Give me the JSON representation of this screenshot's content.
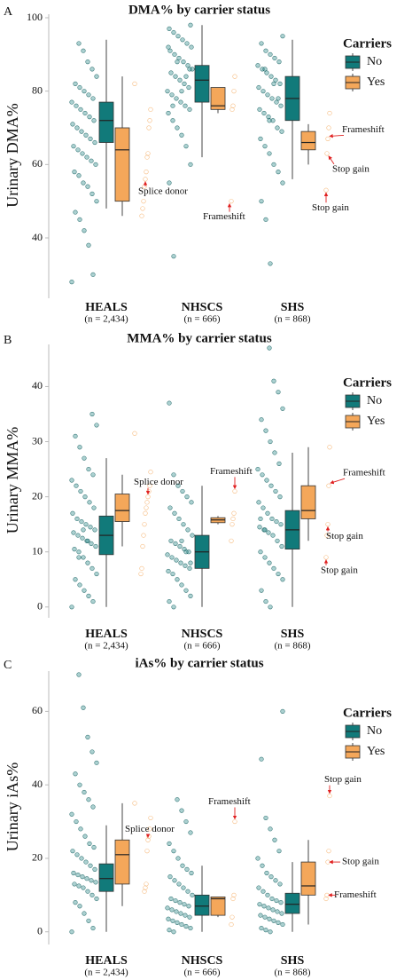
{
  "chart_data": [
    {
      "type": "box_jitter",
      "panel_label": "A",
      "title": "DMA% by carrier status",
      "ylabel": "Urinary DMA%",
      "categories": [
        "HEALS",
        "NHSCS",
        "SHS"
      ],
      "category_notes": [
        "(n = 2,434)",
        "(n = 666)",
        "(n = 868)"
      ],
      "legend_title": "Carriers",
      "ylim": [
        25,
        100
      ],
      "yticks": [
        40,
        60,
        80,
        100
      ],
      "series": [
        {
          "name": "No",
          "color": "#117a7a",
          "boxes": [
            {
              "whislo": 48,
              "q1": 66,
              "med": 72,
              "q3": 77,
              "whishi": 94
            },
            {
              "whislo": 62,
              "q1": 77,
              "med": 83,
              "q3": 87,
              "whishi": 98
            },
            {
              "whislo": 56,
              "q1": 72,
              "med": 78,
              "q3": 84,
              "whishi": 94
            }
          ],
          "points": [
            [
              28,
              30,
              38,
              42,
              45,
              47,
              50,
              52,
              54,
              55,
              57,
              58,
              60,
              61,
              62,
              63,
              64,
              65,
              66,
              67,
              68,
              69,
              70,
              71,
              72,
              73,
              74,
              75,
              76,
              77,
              78,
              79,
              80,
              81,
              82,
              84,
              86,
              88,
              91,
              93
            ],
            [
              35,
              55,
              60,
              65,
              68,
              70,
              72,
              74,
              75,
              76,
              77,
              78,
              79,
              80,
              81,
              82,
              83,
              84,
              85,
              86,
              87,
              88,
              89,
              90,
              91,
              92,
              93,
              94,
              95,
              96,
              97,
              98,
              84,
              80,
              88,
              76,
              92,
              86
            ],
            [
              33,
              45,
              50,
              55,
              58,
              60,
              63,
              65,
              67,
              69,
              70,
              72,
              73,
              74,
              75,
              76,
              77,
              78,
              79,
              80,
              81,
              82,
              83,
              84,
              85,
              86,
              87,
              88,
              89,
              90,
              91,
              93,
              95,
              78,
              82,
              72,
              86
            ]
          ]
        },
        {
          "name": "Yes",
          "color": "#f4a75a",
          "boxes": [
            {
              "whislo": 46,
              "q1": 50,
              "med": 64,
              "q3": 70,
              "whishi": 84
            },
            {
              "whislo": 74,
              "q1": 75,
              "med": 76,
              "q3": 81,
              "whishi": 81
            },
            {
              "whislo": 60,
              "q1": 64,
              "med": 66,
              "q3": 69,
              "whishi": 71
            }
          ],
          "points": [
            [
              82,
              75,
              72,
              70,
              63,
              62,
              58,
              56,
              54,
              50,
              48,
              46
            ],
            [
              84,
              80,
              76,
              75,
              50
            ],
            [
              74,
              70,
              67,
              63,
              53
            ]
          ]
        }
      ],
      "annotations": [
        {
          "label": "Splice donor",
          "category": 0,
          "value": 56
        },
        {
          "label": "Frameshift",
          "category": 1,
          "value": 50
        },
        {
          "label": "Frameshift",
          "category": 2,
          "value": 67
        },
        {
          "label": "Stop gain",
          "category": 2,
          "value": 63
        },
        {
          "label": "Stop gain",
          "category": 2,
          "value": 53
        }
      ]
    },
    {
      "type": "box_jitter",
      "panel_label": "B",
      "title": "MMA% by carrier status",
      "ylabel": "Urinary MMA%",
      "categories": [
        "HEALS",
        "NHSCS",
        "SHS"
      ],
      "category_notes": [
        "(n = 2,434)",
        "(n = 666)",
        "(n = 868)"
      ],
      "legend_title": "Carriers",
      "ylim": [
        -1,
        47
      ],
      "yticks": [
        0,
        10,
        20,
        30,
        40
      ],
      "series": [
        {
          "name": "No",
          "color": "#117a7a",
          "boxes": [
            {
              "whislo": 0,
              "q1": 9.5,
              "med": 13,
              "q3": 16.5,
              "whishi": 27
            },
            {
              "whislo": 0,
              "q1": 7,
              "med": 10,
              "q3": 13,
              "whishi": 22
            },
            {
              "whislo": 0,
              "q1": 10.5,
              "med": 14,
              "q3": 17.5,
              "whishi": 28
            }
          ],
          "points": [
            [
              0,
              1,
              2,
              3,
              4,
              5,
              6,
              7,
              8,
              9,
              10,
              10.5,
              11,
              11.5,
              12,
              12.5,
              13,
              13.5,
              14,
              14.5,
              15,
              15.5,
              16,
              17,
              18,
              19,
              20,
              21,
              22,
              23,
              24,
              25,
              27,
              29,
              31,
              33,
              35,
              12,
              14,
              9
            ],
            [
              0,
              1,
              2,
              3,
              4,
              5,
              6,
              6.5,
              7,
              7.5,
              8,
              8.5,
              9,
              9.5,
              10,
              10.5,
              11,
              11.5,
              12,
              13,
              14,
              15,
              16,
              17,
              18,
              19,
              20,
              21,
              22,
              24,
              37,
              8,
              10,
              12
            ],
            [
              0,
              1,
              3,
              5,
              6,
              7,
              8,
              9,
              10,
              11,
              12,
              13,
              13.5,
              14,
              14.5,
              15,
              15.5,
              16,
              17,
              18,
              19,
              20,
              21,
              22,
              23,
              24,
              25,
              26,
              28,
              30,
              32,
              34,
              36,
              39,
              41,
              47,
              14,
              16
            ]
          ]
        },
        {
          "name": "Yes",
          "color": "#f4a75a",
          "boxes": [
            {
              "whislo": 11,
              "q1": 15.5,
              "med": 17.5,
              "q3": 20.5,
              "whishi": 24
            },
            {
              "whislo": 15,
              "q1": 15.3,
              "med": 15.8,
              "q3": 16.2,
              "whishi": 16.5
            },
            {
              "whislo": 12,
              "q1": 16,
              "med": 17.5,
              "q3": 22,
              "whishi": 29
            }
          ],
          "points": [
            [
              31.5,
              24.5,
              22,
              21,
              20,
              19,
              18,
              17,
              15,
              13,
              11,
              7,
              6
            ],
            [
              21,
              17,
              16,
              15,
              12
            ],
            [
              29,
              22,
              15,
              13,
              9
            ]
          ]
        }
      ],
      "annotations": [
        {
          "label": "Splice donor",
          "category": 0,
          "value": 20
        },
        {
          "label": "Frameshift",
          "category": 1,
          "value": 21
        },
        {
          "label": "Frameshift",
          "category": 2,
          "value": 22
        },
        {
          "label": "Stop gain",
          "category": 2,
          "value": 15
        },
        {
          "label": "Stop gain",
          "category": 2,
          "value": 9
        }
      ]
    },
    {
      "type": "box_jitter",
      "panel_label": "C",
      "title": "iAs% by carrier status",
      "ylabel": "Urinary iAs%",
      "categories": [
        "HEALS",
        "NHSCS",
        "SHS"
      ],
      "category_notes": [
        "(n = 2,434)",
        "(n = 666)",
        "(n = 868)"
      ],
      "legend_title": "Carriers",
      "ylim": [
        -2,
        70
      ],
      "yticks": [
        0,
        20,
        40,
        60
      ],
      "series": [
        {
          "name": "No",
          "color": "#117a7a",
          "boxes": [
            {
              "whislo": 0,
              "q1": 11,
              "med": 14.5,
              "q3": 18.5,
              "whishi": 29
            },
            {
              "whislo": 0,
              "q1": 4.5,
              "med": 7,
              "q3": 10,
              "whishi": 18
            },
            {
              "whislo": 0,
              "q1": 5,
              "med": 7.5,
              "q3": 10.5,
              "whishi": 19
            }
          ],
          "points": [
            [
              0,
              1,
              3,
              5,
              7,
              8,
              9,
              10,
              11,
              12,
              12.5,
              13,
              13.5,
              14,
              14.5,
              15,
              15.5,
              16,
              17,
              18,
              19,
              20,
              21,
              22,
              23,
              24,
              26,
              28,
              30,
              32,
              34,
              36,
              38,
              40,
              43,
              46,
              49,
              53,
              61,
              70
            ],
            [
              0,
              0.5,
              1,
              1.5,
              2,
              2.5,
              3,
              3.5,
              4,
              4.5,
              5,
              5.5,
              6,
              6.5,
              7,
              7.5,
              8,
              8.5,
              9,
              10,
              11,
              12,
              13,
              14,
              15,
              16,
              17,
              18,
              20,
              22,
              24,
              27,
              30,
              33,
              36
            ],
            [
              0,
              0.5,
              1,
              2,
              2.5,
              3,
              3.5,
              4,
              4.5,
              5,
              5.5,
              6,
              6.5,
              7,
              7.5,
              8,
              8.5,
              9,
              10,
              11,
              12,
              13,
              14,
              15,
              16,
              18,
              20,
              22,
              25,
              28,
              31,
              47,
              60
            ]
          ]
        },
        {
          "name": "Yes",
          "color": "#f4a75a",
          "boxes": [
            {
              "whislo": 7,
              "q1": 13,
              "med": 21,
              "q3": 25,
              "whishi": 35
            },
            {
              "whislo": 4,
              "q1": 4.5,
              "med": 9,
              "q3": 9.5,
              "whishi": 9.5
            },
            {
              "whislo": 2,
              "q1": 10,
              "med": 12.5,
              "q3": 19,
              "whishi": 25
            }
          ],
          "points": [
            [
              35,
              31,
              28,
              26,
              25,
              22,
              13,
              12,
              11
            ],
            [
              30,
              10,
              9,
              4,
              2
            ],
            [
              37,
              22,
              19,
              10,
              9
            ]
          ]
        }
      ],
      "annotations": [
        {
          "label": "Splice donor",
          "category": 0,
          "value": 25
        },
        {
          "label": "Frameshift",
          "category": 1,
          "value": 30
        },
        {
          "label": "Stop gain",
          "category": 2,
          "value": 37
        },
        {
          "label": "Stop gain",
          "category": 2,
          "value": 19
        },
        {
          "label": "Frameshift",
          "category": 2,
          "value": 10
        }
      ]
    }
  ]
}
